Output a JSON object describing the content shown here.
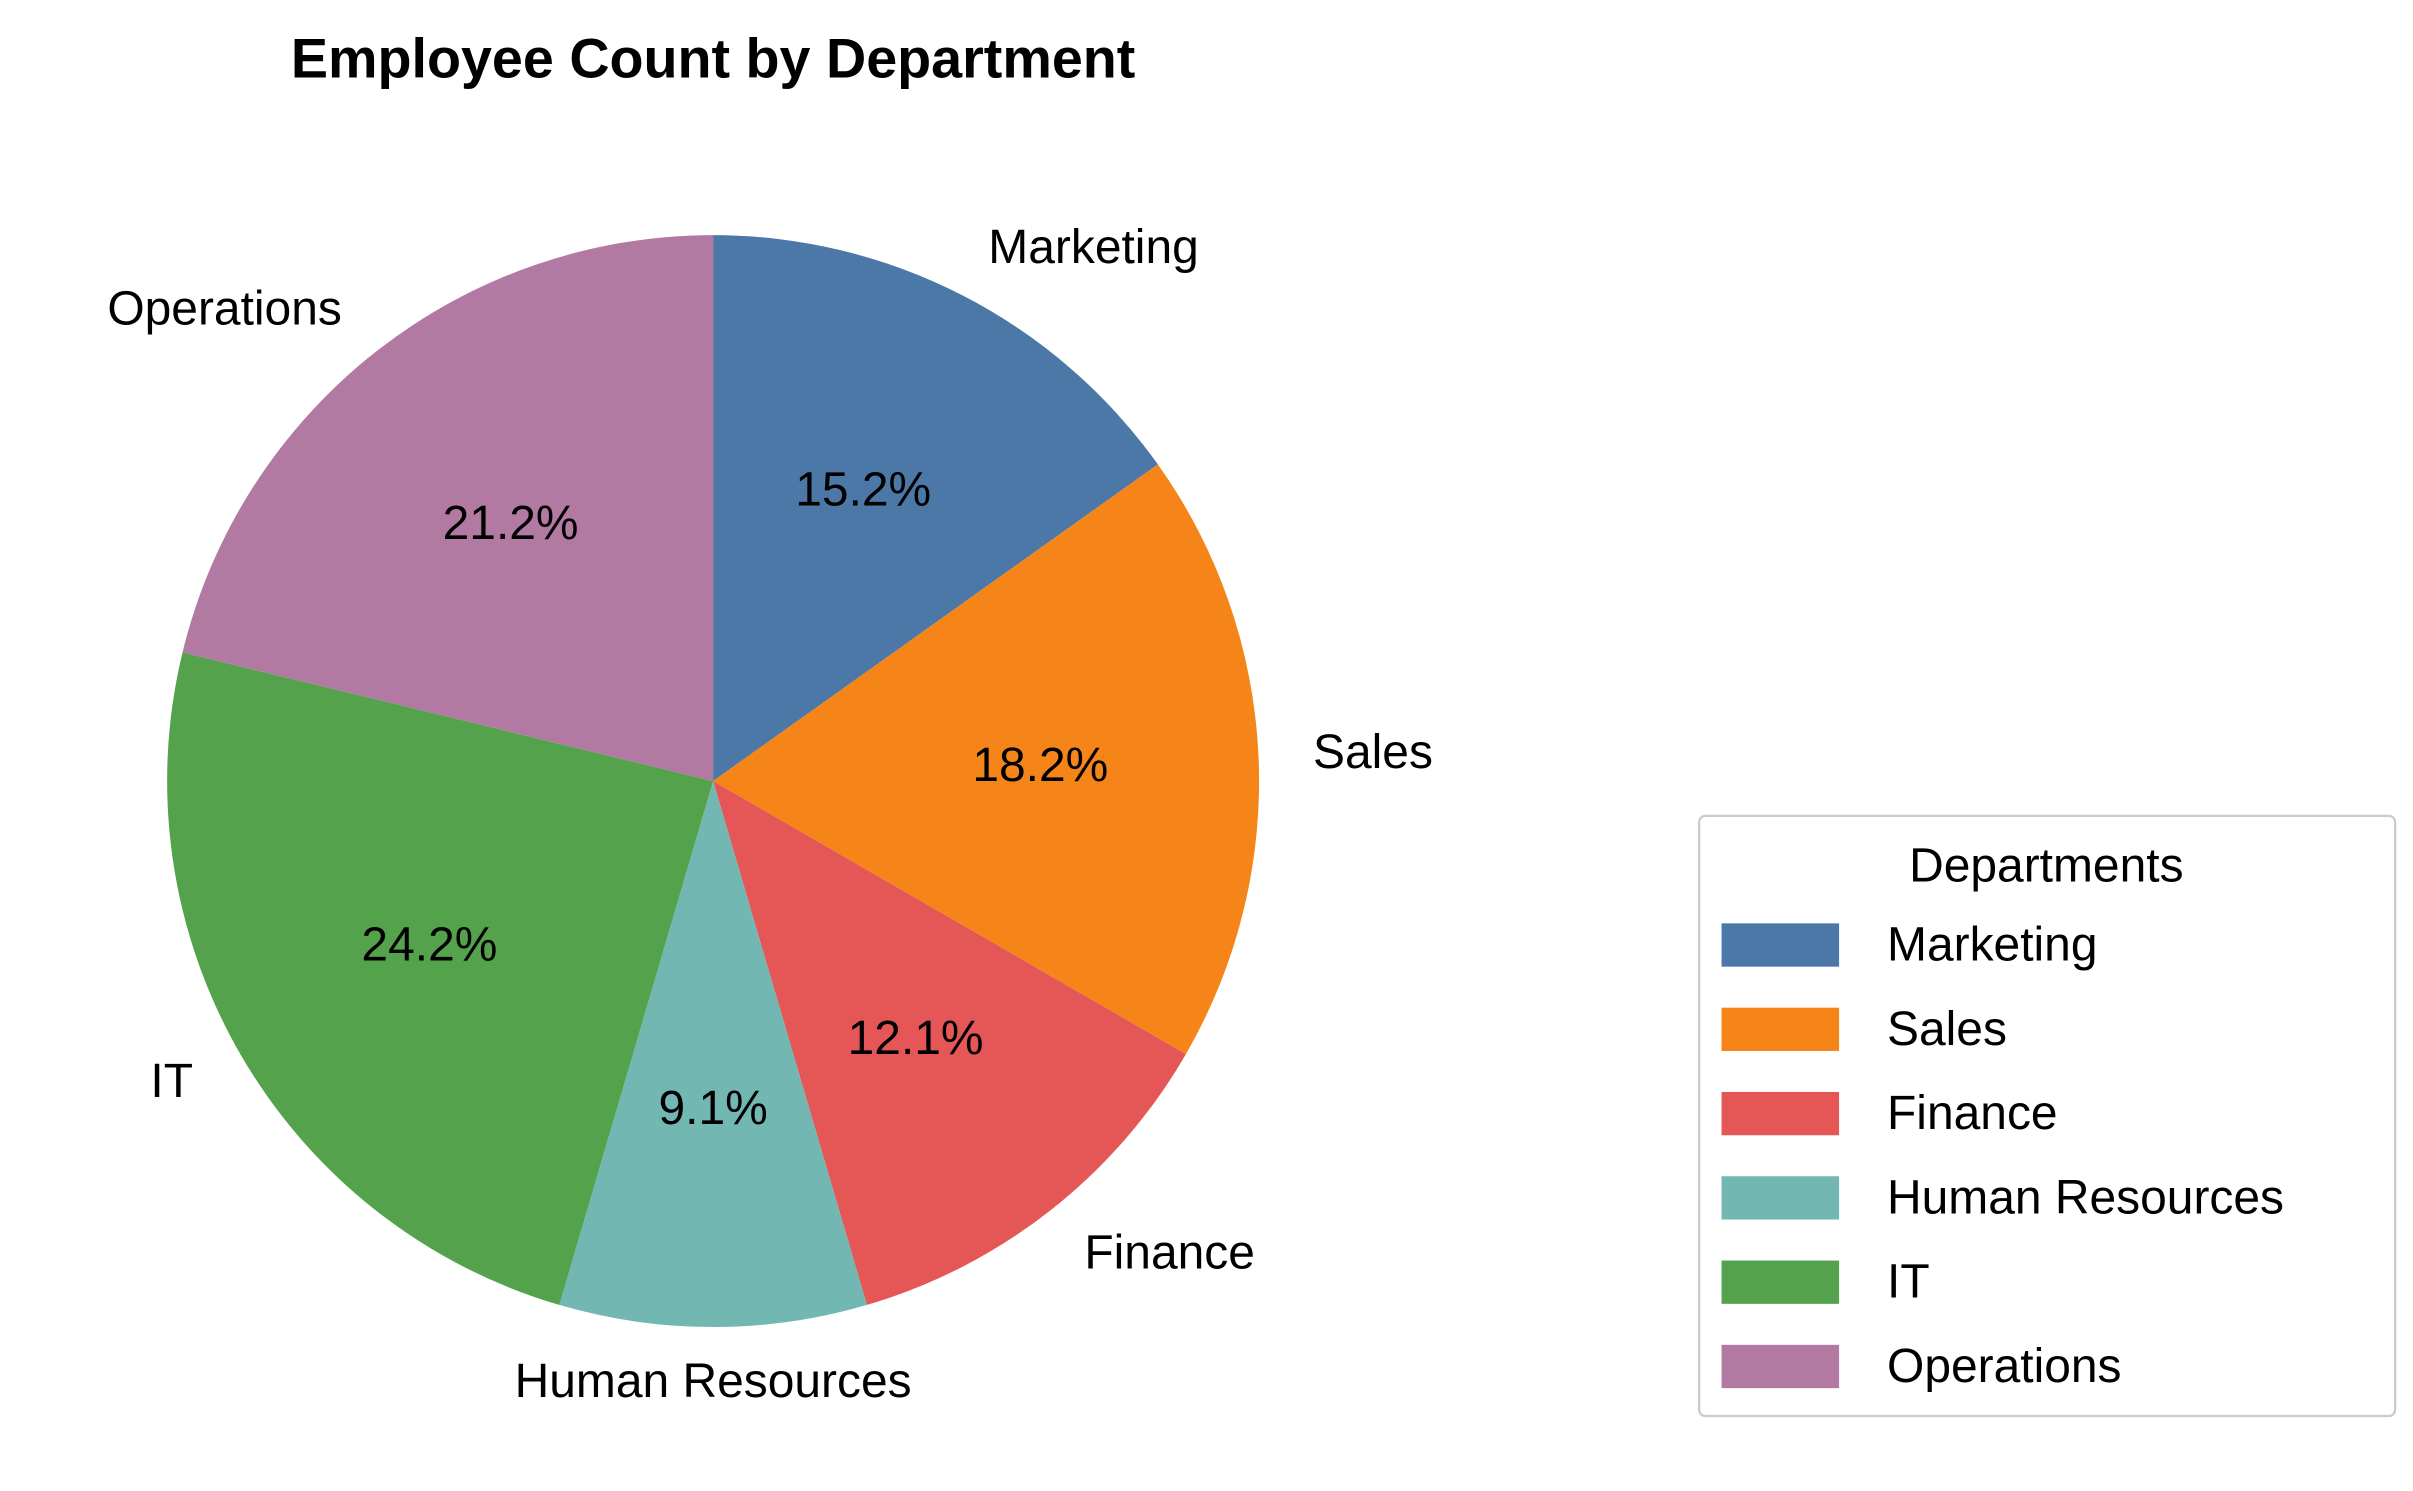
{
  "chart_data": {
    "type": "pie",
    "title": "Employee Count by Department",
    "categories": [
      "Marketing",
      "Sales",
      "Finance",
      "Human Resources",
      "IT",
      "Operations"
    ],
    "values": [
      5,
      6,
      4,
      3,
      8,
      7
    ],
    "percent_labels": [
      "15.2%",
      "18.2%",
      "12.1%",
      "9.1%",
      "24.2%",
      "21.2%"
    ],
    "colors": [
      "#4c78a8",
      "#f58518",
      "#e45756",
      "#72b7b2",
      "#54a24b",
      "#b279a2"
    ],
    "start_angle": 90,
    "direction": "clockwise",
    "legend": {
      "title": "Departments",
      "placement": "lower-right",
      "entries": [
        "Marketing",
        "Sales",
        "Finance",
        "Human Resources",
        "IT",
        "Operations"
      ]
    }
  }
}
